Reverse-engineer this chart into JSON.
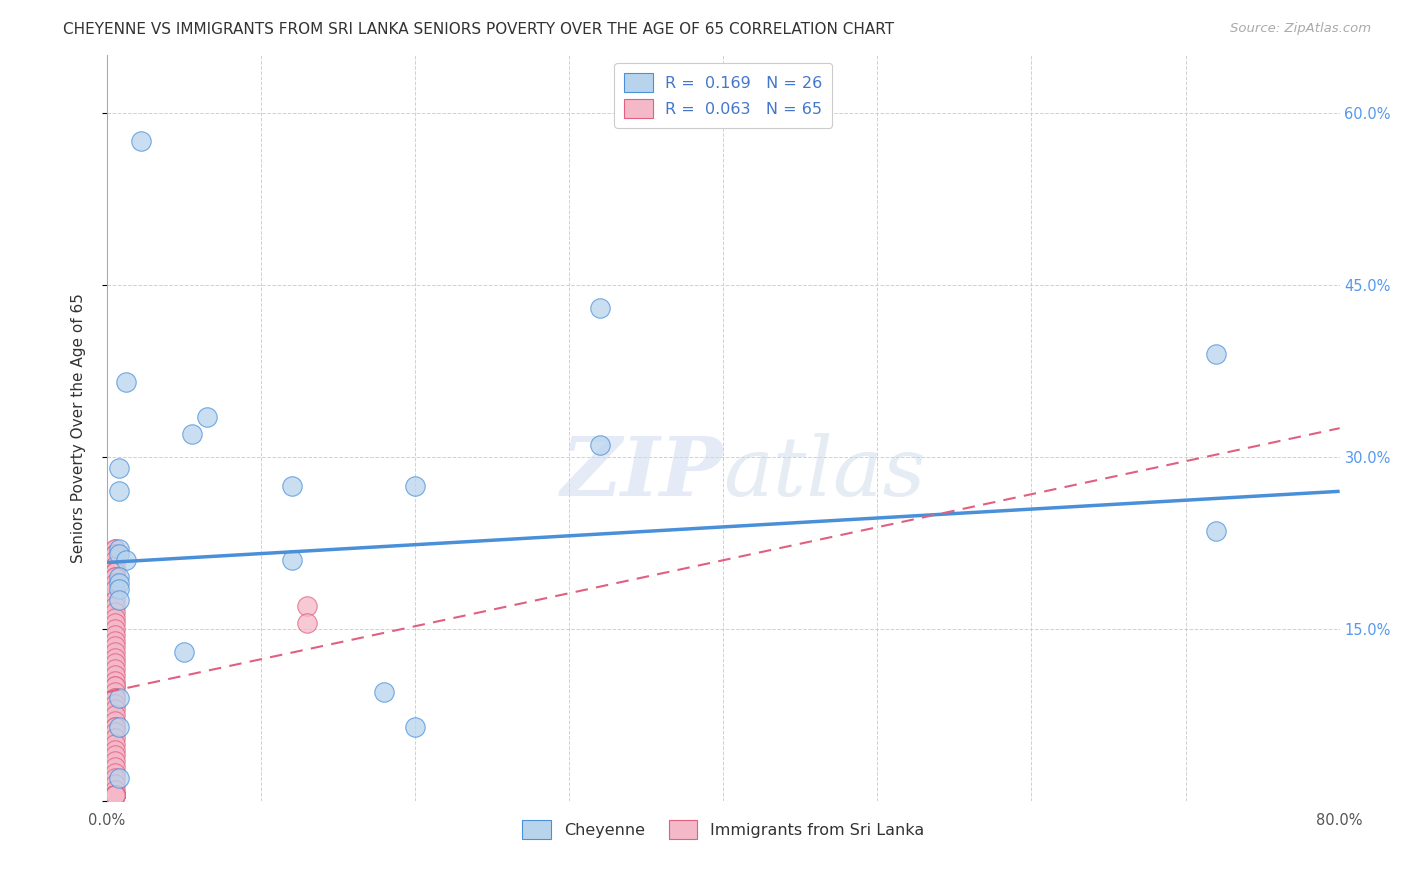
{
  "title": "CHEYENNE VS IMMIGRANTS FROM SRI LANKA SENIORS POVERTY OVER THE AGE OF 65 CORRELATION CHART",
  "source": "Source: ZipAtlas.com",
  "ylabel": "Seniors Poverty Over the Age of 65",
  "watermark": "ZIPatlas",
  "legend1_label": "Cheyenne",
  "legend2_label": "Immigrants from Sri Lanka",
  "R1": 0.169,
  "N1": 26,
  "R2": 0.063,
  "N2": 65,
  "color1": "#b8d4ed",
  "color2": "#f4b8c8",
  "line1_color": "#4a90d9",
  "line2_color": "#e06080",
  "xlim": [
    0.0,
    0.8
  ],
  "ylim": [
    0.0,
    0.65
  ],
  "cheyenne_x": [
    0.022,
    0.012,
    0.008,
    0.008,
    0.008,
    0.008,
    0.012,
    0.065,
    0.055,
    0.12,
    0.12,
    0.2,
    0.2,
    0.32,
    0.32,
    0.72,
    0.72,
    0.008,
    0.008,
    0.05,
    0.008,
    0.008,
    0.008,
    0.18,
    0.008,
    0.008
  ],
  "cheyenne_y": [
    0.575,
    0.365,
    0.29,
    0.27,
    0.22,
    0.215,
    0.21,
    0.335,
    0.32,
    0.275,
    0.21,
    0.275,
    0.065,
    0.43,
    0.31,
    0.39,
    0.235,
    0.195,
    0.19,
    0.13,
    0.185,
    0.175,
    0.09,
    0.095,
    0.065,
    0.02
  ],
  "srilanka_x": [
    0.005,
    0.005,
    0.005,
    0.005,
    0.005,
    0.005,
    0.005,
    0.005,
    0.005,
    0.005,
    0.005,
    0.005,
    0.005,
    0.005,
    0.005,
    0.005,
    0.005,
    0.005,
    0.005,
    0.005,
    0.005,
    0.005,
    0.005,
    0.005,
    0.005,
    0.005,
    0.005,
    0.005,
    0.005,
    0.005,
    0.005,
    0.005,
    0.005,
    0.005,
    0.005,
    0.005,
    0.005,
    0.005,
    0.005,
    0.005,
    0.005,
    0.005,
    0.005,
    0.005,
    0.005,
    0.005,
    0.005,
    0.005,
    0.005,
    0.005,
    0.005,
    0.005,
    0.005,
    0.005,
    0.005,
    0.005,
    0.005,
    0.005,
    0.005,
    0.005,
    0.005,
    0.005,
    0.005,
    0.13,
    0.13
  ],
  "srilanka_y": [
    0.22,
    0.22,
    0.215,
    0.215,
    0.21,
    0.205,
    0.2,
    0.2,
    0.195,
    0.195,
    0.19,
    0.185,
    0.175,
    0.17,
    0.165,
    0.16,
    0.155,
    0.15,
    0.145,
    0.14,
    0.135,
    0.13,
    0.125,
    0.12,
    0.115,
    0.11,
    0.105,
    0.1,
    0.1,
    0.095,
    0.09,
    0.09,
    0.085,
    0.08,
    0.075,
    0.07,
    0.065,
    0.065,
    0.06,
    0.055,
    0.05,
    0.045,
    0.04,
    0.035,
    0.03,
    0.025,
    0.02,
    0.015,
    0.01,
    0.005,
    0.005,
    0.005,
    0.005,
    0.005,
    0.005,
    0.005,
    0.005,
    0.005,
    0.005,
    0.005,
    0.005,
    0.005,
    0.005,
    0.17,
    0.155
  ],
  "line1_x0": 0.0,
  "line1_y0": 0.208,
  "line1_x1": 0.8,
  "line1_y1": 0.27,
  "line2_x0": 0.0,
  "line2_y0": 0.095,
  "line2_x1": 0.8,
  "line2_y1": 0.325,
  "background_color": "#ffffff",
  "grid_color": "#cccccc",
  "title_fontsize": 11,
  "label_fontsize": 11,
  "tick_fontsize": 10.5,
  "marker_size": 14
}
